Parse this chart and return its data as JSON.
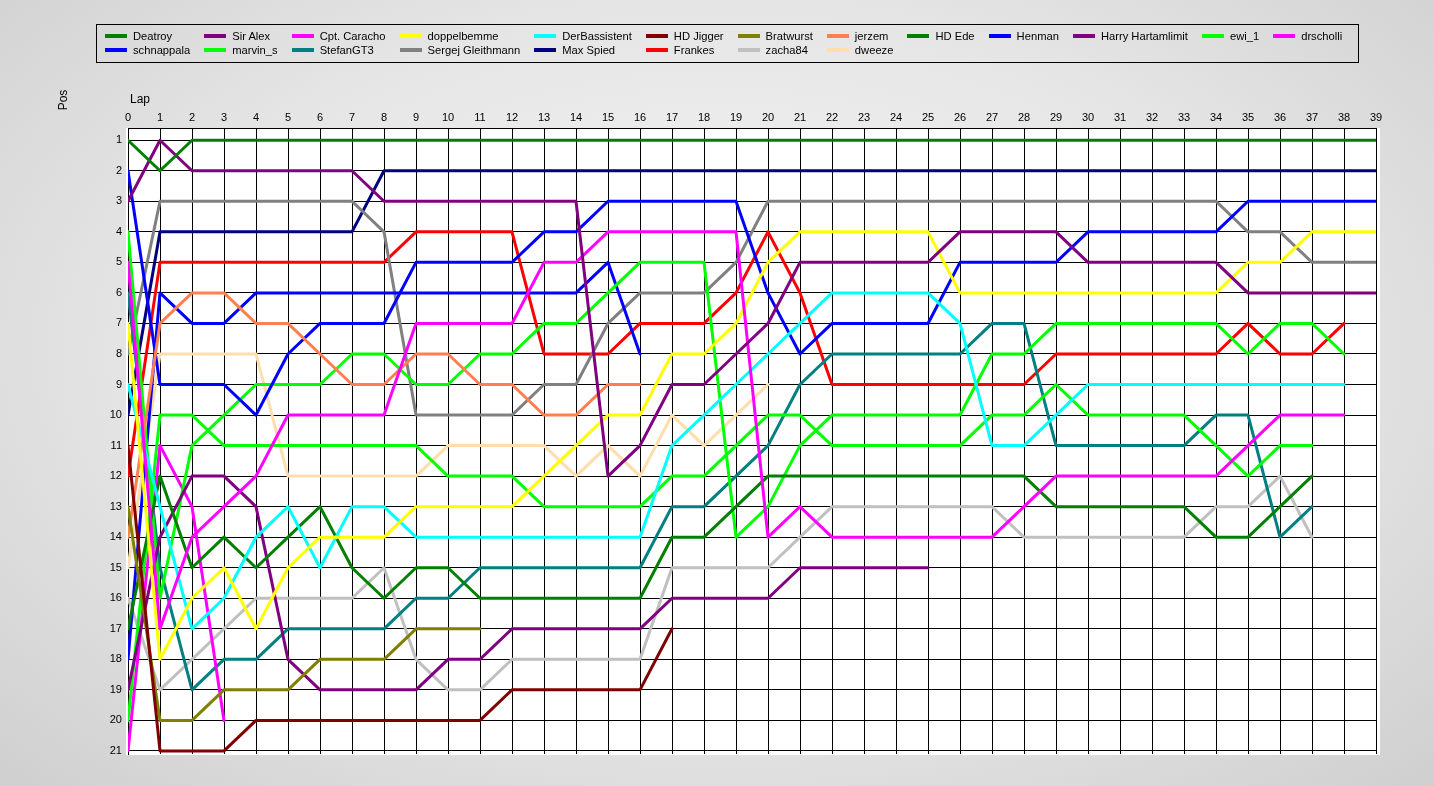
{
  "chart_data": {
    "type": "line",
    "xlabel": "Lap",
    "ylabel": "Pos",
    "x": [
      0,
      1,
      2,
      3,
      4,
      5,
      6,
      7,
      8,
      9,
      10,
      11,
      12,
      13,
      14,
      15,
      16,
      17,
      18,
      19,
      20,
      21,
      22,
      23,
      24,
      25,
      26,
      27,
      28,
      29,
      30,
      31,
      32,
      33,
      34,
      35,
      36,
      37,
      38,
      39
    ],
    "xlim": [
      0,
      39
    ],
    "xticks": [
      0,
      1,
      2,
      3,
      4,
      5,
      6,
      7,
      8,
      9,
      10,
      11,
      12,
      13,
      14,
      15,
      16,
      17,
      18,
      19,
      20,
      21,
      22,
      23,
      24,
      25,
      26,
      27,
      28,
      29,
      30,
      31,
      32,
      33,
      34,
      35,
      36,
      37,
      38,
      39
    ],
    "ylim": [
      21.1,
      0.6
    ],
    "yticks": [
      1,
      2,
      3,
      4,
      5,
      6,
      7,
      8,
      9,
      10,
      11,
      12,
      13,
      14,
      15,
      16,
      17,
      18,
      19,
      20,
      21
    ],
    "grid": true,
    "legend": "top",
    "marker": "none",
    "line_style": "solid",
    "series": [
      {
        "name": "Deatroy",
        "color": "#008000",
        "values": [
          1,
          2,
          1,
          1,
          1,
          1,
          1,
          1,
          1,
          1,
          1,
          1,
          1,
          1,
          1,
          1,
          1,
          1,
          1,
          1,
          1,
          1,
          1,
          1,
          1,
          1,
          1,
          1,
          1,
          1,
          1,
          1,
          1,
          1,
          1,
          1,
          1,
          1,
          1,
          1
        ]
      },
      {
        "name": "Sir Alex",
        "color": "#800080",
        "values": [
          3,
          1,
          2,
          2,
          2,
          2,
          2,
          2,
          3,
          3,
          3,
          3,
          3,
          3,
          3,
          12,
          11,
          9,
          9,
          8,
          7,
          5,
          5,
          5,
          5,
          5,
          4,
          4,
          4,
          4,
          5,
          5,
          5,
          5,
          5,
          6,
          6,
          6,
          6,
          6
        ]
      },
      {
        "name": "Cpt. Caracho",
        "color": "#ff00ff",
        "values": [
          5,
          17,
          14,
          13,
          12,
          10,
          10,
          10,
          10,
          7,
          7,
          7,
          7,
          5,
          5,
          4,
          4,
          4,
          4,
          4,
          14,
          13,
          14,
          14,
          14,
          14,
          14,
          14,
          13,
          12,
          12,
          12,
          12,
          12,
          12,
          11,
          10,
          10,
          10,
          null
        ]
      },
      {
        "name": "doppelbemme",
        "color": "#ffff00",
        "values": [
          7,
          18,
          16,
          15,
          17,
          15,
          14,
          14,
          14,
          13,
          13,
          13,
          13,
          12,
          11,
          10,
          10,
          8,
          8,
          7,
          5,
          4,
          4,
          4,
          4,
          4,
          6,
          6,
          6,
          6,
          6,
          6,
          6,
          6,
          6,
          5,
          5,
          4,
          4,
          4
        ]
      },
      {
        "name": "DerBassistent",
        "color": "#00ffff",
        "values": [
          9,
          13,
          17,
          16,
          14,
          13,
          15,
          13,
          13,
          14,
          14,
          14,
          14,
          14,
          14,
          14,
          14,
          11,
          10,
          9,
          8,
          7,
          6,
          6,
          6,
          6,
          7,
          11,
          11,
          10,
          9,
          9,
          9,
          9,
          9,
          9,
          9,
          9,
          9,
          null
        ]
      },
      {
        "name": "HD Jigger",
        "color": "#800000",
        "values": [
          11,
          21,
          21,
          21,
          20,
          20,
          20,
          20,
          20,
          20,
          20,
          20,
          19,
          19,
          19,
          19,
          19,
          17,
          null,
          null,
          null,
          null,
          null,
          null,
          null,
          null,
          null,
          null,
          null,
          null,
          null,
          null,
          null,
          null,
          null,
          null,
          null,
          null,
          null,
          null
        ]
      },
      {
        "name": "Bratwurst",
        "color": "#808000",
        "values": [
          13,
          20,
          20,
          19,
          19,
          19,
          18,
          18,
          18,
          17,
          17,
          17,
          null,
          null,
          null,
          null,
          null,
          null,
          null,
          null,
          null,
          null,
          null,
          null,
          null,
          null,
          null,
          null,
          null,
          null,
          null,
          null,
          null,
          null,
          null,
          null,
          null,
          null,
          null,
          null
        ]
      },
      {
        "name": "jerzem",
        "color": "#ff7f50",
        "values": [
          14,
          7,
          6,
          6,
          7,
          7,
          8,
          9,
          9,
          8,
          8,
          9,
          9,
          10,
          10,
          9,
          9,
          null,
          null,
          null,
          null,
          null,
          null,
          null,
          null,
          null,
          null,
          null,
          null,
          null,
          null,
          null,
          null,
          null,
          null,
          null,
          null,
          null,
          null,
          null
        ]
      },
      {
        "name": "HD Ede",
        "color": "#008000",
        "values": [
          17,
          12,
          15,
          14,
          15,
          14,
          13,
          15,
          16,
          15,
          15,
          16,
          16,
          16,
          16,
          16,
          16,
          14,
          14,
          13,
          12,
          12,
          12,
          12,
          12,
          12,
          12,
          12,
          12,
          13,
          13,
          13,
          13,
          13,
          14,
          14,
          13,
          12,
          null,
          null
        ]
      },
      {
        "name": "Henman",
        "color": "#0000ff",
        "values": [
          2,
          9,
          9,
          9,
          10,
          8,
          7,
          7,
          7,
          5,
          5,
          5,
          5,
          4,
          4,
          3,
          3,
          3,
          3,
          3,
          6,
          8,
          7,
          7,
          7,
          7,
          5,
          5,
          5,
          5,
          4,
          4,
          4,
          4,
          4,
          3,
          3,
          3,
          3,
          3
        ]
      },
      {
        "name": "Harry Hartamlimit",
        "color": "#800080",
        "values": [
          19,
          14,
          12,
          12,
          13,
          18,
          19,
          19,
          19,
          19,
          18,
          18,
          17,
          17,
          17,
          17,
          17,
          16,
          16,
          16,
          16,
          15,
          15,
          15,
          15,
          15,
          null,
          null,
          null,
          null,
          null,
          null,
          null,
          null,
          null,
          null,
          null,
          null,
          null,
          null
        ]
      },
      {
        "name": "ewi_1",
        "color": "#00ff00",
        "values": [
          4,
          16,
          11,
          10,
          9,
          9,
          9,
          8,
          8,
          9,
          9,
          8,
          8,
          7,
          7,
          6,
          5,
          5,
          5,
          14,
          13,
          11,
          10,
          10,
          10,
          10,
          10,
          8,
          8,
          7,
          7,
          7,
          7,
          7,
          7,
          8,
          7,
          7,
          8,
          null
        ]
      },
      {
        "name": "drscholli",
        "color": "#ff00ff",
        "values": [
          21,
          11,
          13,
          20,
          null,
          null,
          null,
          null,
          null,
          null,
          null,
          null,
          null,
          null,
          null,
          null,
          null,
          null,
          null,
          null,
          null,
          null,
          null,
          null,
          null,
          null,
          null,
          null,
          null,
          null,
          null,
          null,
          null,
          null,
          null,
          null,
          null,
          null,
          null,
          null
        ]
      },
      {
        "name": "schnappala",
        "color": "#0000ff",
        "values": [
          18,
          6,
          7,
          7,
          6,
          6,
          6,
          6,
          6,
          6,
          6,
          6,
          6,
          6,
          6,
          5,
          8,
          null,
          null,
          null,
          null,
          null,
          null,
          null,
          null,
          null,
          null,
          null,
          null,
          null,
          null,
          null,
          null,
          null,
          null,
          null,
          null,
          null,
          null,
          null
        ]
      },
      {
        "name": "marvin_s",
        "color": "#00ff00",
        "values": [
          20,
          10,
          10,
          11,
          11,
          11,
          11,
          11,
          11,
          11,
          12,
          12,
          12,
          13,
          13,
          13,
          13,
          12,
          12,
          11,
          10,
          10,
          11,
          11,
          11,
          11,
          11,
          10,
          10,
          9,
          10,
          10,
          10,
          10,
          11,
          12,
          11,
          11,
          null,
          null
        ]
      },
      {
        "name": "StefanGT3",
        "color": "#008080",
        "values": [
          6,
          15,
          19,
          18,
          18,
          17,
          17,
          17,
          17,
          16,
          16,
          15,
          15,
          15,
          15,
          15,
          15,
          13,
          13,
          12,
          11,
          9,
          8,
          8,
          8,
          8,
          8,
          7,
          7,
          11,
          11,
          11,
          11,
          11,
          10,
          10,
          14,
          13,
          null,
          null
        ]
      },
      {
        "name": "Sergej Gleithmann",
        "color": "#808080",
        "values": [
          8,
          3,
          3,
          3,
          3,
          3,
          3,
          3,
          4,
          10,
          10,
          10,
          10,
          9,
          9,
          7,
          6,
          6,
          6,
          5,
          3,
          3,
          3,
          3,
          3,
          3,
          3,
          3,
          3,
          3,
          3,
          3,
          3,
          3,
          3,
          4,
          4,
          5,
          5,
          5
        ]
      },
      {
        "name": "Max Spied",
        "color": "#000080",
        "values": [
          10,
          4,
          4,
          4,
          4,
          4,
          4,
          4,
          2,
          2,
          2,
          2,
          2,
          2,
          2,
          2,
          2,
          2,
          2,
          2,
          2,
          2,
          2,
          2,
          2,
          2,
          2,
          2,
          2,
          2,
          2,
          2,
          2,
          2,
          2,
          2,
          2,
          2,
          2,
          2
        ]
      },
      {
        "name": "Frankes",
        "color": "#ff0000",
        "values": [
          12,
          5,
          5,
          5,
          5,
          5,
          5,
          5,
          5,
          4,
          4,
          4,
          4,
          8,
          8,
          8,
          7,
          7,
          7,
          6,
          4,
          6,
          9,
          9,
          9,
          9,
          9,
          9,
          9,
          8,
          8,
          8,
          8,
          8,
          8,
          7,
          8,
          8,
          7,
          null
        ]
      },
      {
        "name": "zacha84",
        "color": "#c0c0c0",
        "values": [
          16,
          19,
          18,
          17,
          16,
          16,
          16,
          16,
          15,
          18,
          19,
          19,
          18,
          18,
          18,
          18,
          18,
          15,
          15,
          15,
          15,
          14,
          13,
          13,
          13,
          13,
          13,
          13,
          14,
          14,
          14,
          14,
          14,
          14,
          13,
          13,
          12,
          14,
          null,
          null
        ]
      },
      {
        "name": "dweeze",
        "color": "#ffdead",
        "values": [
          15,
          8,
          8,
          8,
          8,
          12,
          12,
          12,
          12,
          12,
          11,
          11,
          11,
          11,
          12,
          11,
          12,
          10,
          11,
          10,
          9,
          null,
          null,
          null,
          null,
          null,
          null,
          null,
          null,
          null,
          null,
          null,
          null,
          null,
          null,
          null,
          null,
          null,
          null,
          null
        ]
      }
    ]
  }
}
